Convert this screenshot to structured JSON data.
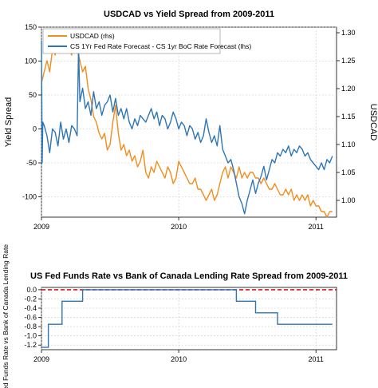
{
  "chart_data": [
    {
      "type": "line",
      "title": "USDCAD vs Yield Spread from 2009-2011",
      "ylabel_left": "Yield Spread",
      "ylabel_right": "USDCAD",
      "x_ticks": [
        "2009",
        "2010",
        "2011"
      ],
      "y_left_ticks": [
        150,
        100,
        50,
        0,
        -50,
        -100
      ],
      "y_right_ticks": [
        1.3,
        1.25,
        1.2,
        1.15,
        1.1,
        1.05,
        1.0
      ],
      "y_left_range": [
        -130,
        150
      ],
      "y_right_range": [
        0.97,
        1.31
      ],
      "x_range": [
        2009.0,
        2011.15
      ],
      "grid": true,
      "legend_position": "top-left",
      "series": [
        {
          "name": "USDCAD (rhs)",
          "axis": "right",
          "color": "#f28c1c",
          "points": [
            [
              2009.0,
              1.21
            ],
            [
              2009.02,
              1.23
            ],
            [
              2009.04,
              1.25
            ],
            [
              2009.06,
              1.23
            ],
            [
              2009.08,
              1.27
            ],
            [
              2009.1,
              1.26
            ],
            [
              2009.12,
              1.29
            ],
            [
              2009.14,
              1.28
            ],
            [
              2009.16,
              1.29
            ],
            [
              2009.18,
              1.3
            ],
            [
              2009.2,
              1.27
            ],
            [
              2009.22,
              1.26
            ],
            [
              2009.24,
              1.29
            ],
            [
              2009.26,
              1.27
            ],
            [
              2009.28,
              1.25
            ],
            [
              2009.3,
              1.23
            ],
            [
              2009.32,
              1.24
            ],
            [
              2009.34,
              1.2
            ],
            [
              2009.36,
              1.18
            ],
            [
              2009.38,
              1.15
            ],
            [
              2009.4,
              1.14
            ],
            [
              2009.42,
              1.12
            ],
            [
              2009.44,
              1.11
            ],
            [
              2009.46,
              1.12
            ],
            [
              2009.48,
              1.09
            ],
            [
              2009.5,
              1.1
            ],
            [
              2009.52,
              1.14
            ],
            [
              2009.54,
              1.17
            ],
            [
              2009.56,
              1.12
            ],
            [
              2009.58,
              1.09
            ],
            [
              2009.6,
              1.1
            ],
            [
              2009.62,
              1.08
            ],
            [
              2009.64,
              1.09
            ],
            [
              2009.66,
              1.07
            ],
            [
              2009.68,
              1.08
            ],
            [
              2009.7,
              1.06
            ],
            [
              2009.72,
              1.07
            ],
            [
              2009.74,
              1.09
            ],
            [
              2009.76,
              1.05
            ],
            [
              2009.78,
              1.04
            ],
            [
              2009.8,
              1.06
            ],
            [
              2009.82,
              1.05
            ],
            [
              2009.84,
              1.07
            ],
            [
              2009.86,
              1.06
            ],
            [
              2009.88,
              1.05
            ],
            [
              2009.9,
              1.04
            ],
            [
              2009.92,
              1.06
            ],
            [
              2009.94,
              1.05
            ],
            [
              2009.96,
              1.03
            ],
            [
              2009.98,
              1.04
            ],
            [
              2010.0,
              1.07
            ],
            [
              2010.02,
              1.06
            ],
            [
              2010.04,
              1.05
            ],
            [
              2010.06,
              1.04
            ],
            [
              2010.08,
              1.03
            ],
            [
              2010.1,
              1.03
            ],
            [
              2010.12,
              1.04
            ],
            [
              2010.14,
              1.02
            ],
            [
              2010.16,
              1.02
            ],
            [
              2010.18,
              1.01
            ],
            [
              2010.2,
              1.0
            ],
            [
              2010.22,
              1.01
            ],
            [
              2010.24,
              1.02
            ],
            [
              2010.26,
              1.0
            ],
            [
              2010.28,
              1.01
            ],
            [
              2010.3,
              1.03
            ],
            [
              2010.32,
              1.05
            ],
            [
              2010.34,
              1.06
            ],
            [
              2010.36,
              1.04
            ],
            [
              2010.38,
              1.06
            ],
            [
              2010.4,
              1.05
            ],
            [
              2010.42,
              1.04
            ],
            [
              2010.44,
              1.06
            ],
            [
              2010.46,
              1.04
            ],
            [
              2010.48,
              1.05
            ],
            [
              2010.5,
              1.04
            ],
            [
              2010.52,
              1.05
            ],
            [
              2010.54,
              1.05
            ],
            [
              2010.56,
              1.04
            ],
            [
              2010.58,
              1.04
            ],
            [
              2010.6,
              1.03
            ],
            [
              2010.62,
              1.04
            ],
            [
              2010.64,
              1.03
            ],
            [
              2010.66,
              1.02
            ],
            [
              2010.68,
              1.02
            ],
            [
              2010.7,
              1.03
            ],
            [
              2010.72,
              1.02
            ],
            [
              2010.74,
              1.01
            ],
            [
              2010.76,
              1.01
            ],
            [
              2010.78,
              1.02
            ],
            [
              2010.8,
              1.01
            ],
            [
              2010.82,
              1.02
            ],
            [
              2010.84,
              1.0
            ],
            [
              2010.86,
              1.01
            ],
            [
              2010.88,
              1.0
            ],
            [
              2010.9,
              1.01
            ],
            [
              2010.92,
              1.0
            ],
            [
              2010.94,
              1.01
            ],
            [
              2010.96,
              0.99
            ],
            [
              2010.98,
              1.0
            ],
            [
              2011.0,
              0.99
            ],
            [
              2011.02,
              0.99
            ],
            [
              2011.04,
              0.98
            ],
            [
              2011.06,
              0.98
            ],
            [
              2011.08,
              0.97
            ],
            [
              2011.1,
              0.98
            ],
            [
              2011.12,
              0.98
            ]
          ]
        },
        {
          "name": "CS 1Yr Fed Rate Forecast - CS 1yr BoC Rate Forecast (lhs)",
          "axis": "left",
          "color": "#2e75b6",
          "points": [
            [
              2009.0,
              130
            ],
            [
              2009.005,
              -50
            ],
            [
              2009.01,
              10
            ],
            [
              2009.02,
              5
            ],
            [
              2009.04,
              -10
            ],
            [
              2009.06,
              -35
            ],
            [
              2009.08,
              0
            ],
            [
              2009.1,
              -5
            ],
            [
              2009.12,
              -25
            ],
            [
              2009.14,
              10
            ],
            [
              2009.16,
              -15
            ],
            [
              2009.18,
              0
            ],
            [
              2009.2,
              -20
            ],
            [
              2009.22,
              5
            ],
            [
              2009.24,
              0
            ],
            [
              2009.26,
              -10
            ],
            [
              2009.27,
              120
            ],
            [
              2009.28,
              40
            ],
            [
              2009.3,
              60
            ],
            [
              2009.32,
              30
            ],
            [
              2009.34,
              40
            ],
            [
              2009.36,
              20
            ],
            [
              2009.38,
              55
            ],
            [
              2009.4,
              30
            ],
            [
              2009.42,
              40
            ],
            [
              2009.44,
              20
            ],
            [
              2009.46,
              35
            ],
            [
              2009.48,
              40
            ],
            [
              2009.5,
              50
            ],
            [
              2009.52,
              25
            ],
            [
              2009.54,
              45
            ],
            [
              2009.56,
              20
            ],
            [
              2009.58,
              30
            ],
            [
              2009.6,
              15
            ],
            [
              2009.62,
              30
            ],
            [
              2009.64,
              10
            ],
            [
              2009.66,
              0
            ],
            [
              2009.68,
              15
            ],
            [
              2009.7,
              5
            ],
            [
              2009.72,
              20
            ],
            [
              2009.74,
              15
            ],
            [
              2009.76,
              10
            ],
            [
              2009.78,
              20
            ],
            [
              2009.8,
              30
            ],
            [
              2009.82,
              15
            ],
            [
              2009.84,
              25
            ],
            [
              2009.86,
              5
            ],
            [
              2009.88,
              20
            ],
            [
              2009.9,
              15
            ],
            [
              2009.92,
              0
            ],
            [
              2009.94,
              10
            ],
            [
              2009.96,
              25
            ],
            [
              2009.98,
              15
            ],
            [
              2010.0,
              0
            ],
            [
              2010.02,
              10
            ],
            [
              2010.04,
              5
            ],
            [
              2010.06,
              -10
            ],
            [
              2010.08,
              5
            ],
            [
              2010.1,
              0
            ],
            [
              2010.12,
              -15
            ],
            [
              2010.14,
              -5
            ],
            [
              2010.16,
              -20
            ],
            [
              2010.18,
              -10
            ],
            [
              2010.2,
              15
            ],
            [
              2010.22,
              -5
            ],
            [
              2010.24,
              -20
            ],
            [
              2010.26,
              -10
            ],
            [
              2010.28,
              -25
            ],
            [
              2010.3,
              5
            ],
            [
              2010.32,
              -30
            ],
            [
              2010.34,
              -40
            ],
            [
              2010.36,
              -50
            ],
            [
              2010.38,
              -45
            ],
            [
              2010.4,
              -60
            ],
            [
              2010.42,
              -80
            ],
            [
              2010.44,
              -100
            ],
            [
              2010.46,
              -110
            ],
            [
              2010.48,
              -125
            ],
            [
              2010.5,
              -105
            ],
            [
              2010.52,
              -90
            ],
            [
              2010.54,
              -75
            ],
            [
              2010.56,
              -95
            ],
            [
              2010.58,
              -80
            ],
            [
              2010.6,
              -70
            ],
            [
              2010.62,
              -55
            ],
            [
              2010.64,
              -75
            ],
            [
              2010.66,
              -60
            ],
            [
              2010.68,
              -45
            ],
            [
              2010.7,
              -50
            ],
            [
              2010.72,
              -35
            ],
            [
              2010.74,
              -40
            ],
            [
              2010.76,
              -30
            ],
            [
              2010.78,
              -35
            ],
            [
              2010.8,
              -25
            ],
            [
              2010.82,
              -40
            ],
            [
              2010.84,
              -30
            ],
            [
              2010.86,
              -35
            ],
            [
              2010.88,
              -25
            ],
            [
              2010.9,
              -30
            ],
            [
              2010.92,
              -40
            ],
            [
              2010.94,
              -35
            ],
            [
              2010.96,
              -45
            ],
            [
              2010.98,
              -50
            ],
            [
              2011.0,
              -55
            ],
            [
              2011.02,
              -60
            ],
            [
              2011.04,
              -50
            ],
            [
              2011.06,
              -60
            ],
            [
              2011.08,
              -45
            ],
            [
              2011.1,
              -50
            ],
            [
              2011.12,
              -40
            ]
          ]
        }
      ]
    },
    {
      "type": "line",
      "title": "US Fed Funds Rate vs Bank of Canada Lending Rate Spread from 2009-2011",
      "ylabel": "Fed Funds Rate vs Bank of Canada Lending Rate",
      "x_ticks": [
        "2009",
        "2010",
        "2011"
      ],
      "y_ticks": [
        "0.0",
        "-0.2",
        "-0.4",
        "-0.6",
        "-0.8",
        "-1.0",
        "-1.2"
      ],
      "y_range": [
        -1.3,
        0.05
      ],
      "x_range": [
        2009.0,
        2011.15
      ],
      "grid": true,
      "reference_line": {
        "value": 0.0,
        "color": "#d7191c",
        "style": "dashed"
      },
      "series": [
        {
          "color": "#2e75b6",
          "step": true,
          "points": [
            [
              2009.0,
              -1.25
            ],
            [
              2009.05,
              -1.25
            ],
            [
              2009.05,
              -0.75
            ],
            [
              2009.15,
              -0.75
            ],
            [
              2009.15,
              -0.25
            ],
            [
              2009.3,
              -0.25
            ],
            [
              2009.3,
              0.0
            ],
            [
              2010.42,
              0.0
            ],
            [
              2010.42,
              -0.25
            ],
            [
              2010.56,
              -0.25
            ],
            [
              2010.56,
              -0.5
            ],
            [
              2010.72,
              -0.5
            ],
            [
              2010.72,
              -0.75
            ],
            [
              2011.12,
              -0.75
            ]
          ]
        }
      ]
    }
  ]
}
